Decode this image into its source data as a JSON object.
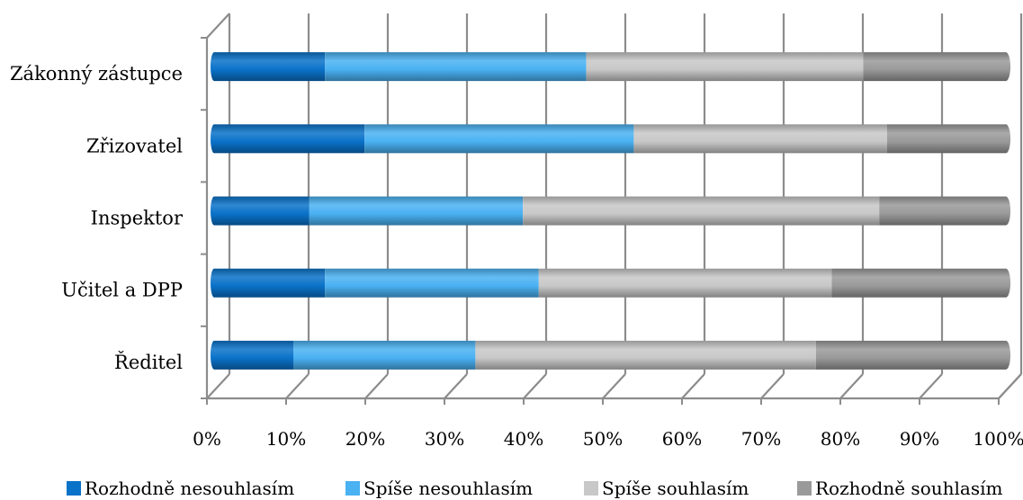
{
  "chart_data": {
    "type": "bar",
    "orientation": "horizontal",
    "stacked": "percent",
    "categories": [
      "Zákonný zástupce",
      "Zřizovatel",
      "Inspektor",
      "Učitel a DPP",
      "Ředitel"
    ],
    "series": [
      {
        "name": "Rozhodně nesouhlasím",
        "color": "#0a72c9",
        "values": [
          14,
          19,
          12,
          14,
          10
        ]
      },
      {
        "name": "Spíše nesouhlasím",
        "color": "#4ab1f2",
        "values": [
          33,
          34,
          27,
          27,
          23
        ]
      },
      {
        "name": "Spíše souhlasím",
        "color": "#c8c8c8",
        "values": [
          35,
          32,
          45,
          37,
          43
        ]
      },
      {
        "name": "Rozhodně souhlasím",
        "color": "#9a9a9a",
        "values": [
          18,
          15,
          16,
          22,
          24
        ]
      }
    ],
    "xlim": [
      0,
      100
    ],
    "x_ticks": [
      "0%",
      "10%",
      "20%",
      "30%",
      "40%",
      "50%",
      "60%",
      "70%",
      "80%",
      "90%",
      "100%"
    ],
    "grid": true,
    "legend_position": "bottom",
    "three_d": true
  }
}
